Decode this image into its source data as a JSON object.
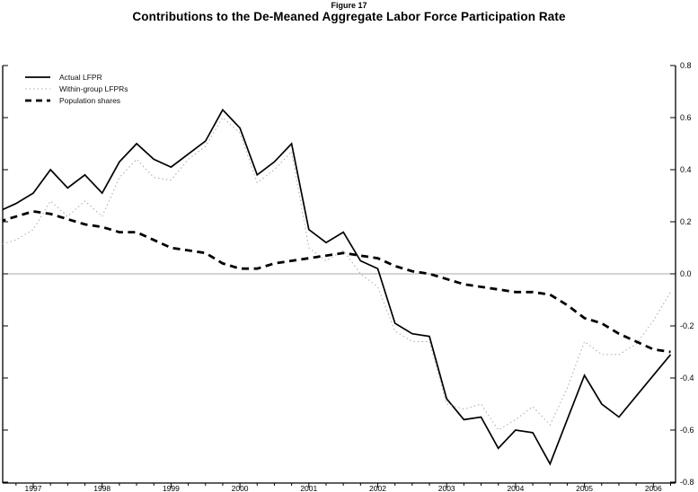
{
  "figure": {
    "label": "Figure 17",
    "title": "Contributions to the De-Meaned Aggregate Labor Force Participation Rate"
  },
  "chart_data": {
    "type": "line",
    "x": [
      "1996Q3",
      "1996Q4",
      "1997Q1",
      "1997Q2",
      "1997Q3",
      "1997Q4",
      "1998Q1",
      "1998Q2",
      "1998Q3",
      "1998Q4",
      "1999Q1",
      "1999Q2",
      "1999Q3",
      "1999Q4",
      "2000Q1",
      "2000Q2",
      "2000Q3",
      "2000Q4",
      "2001Q1",
      "2001Q2",
      "2001Q3",
      "2001Q4",
      "2002Q1",
      "2002Q2",
      "2002Q3",
      "2002Q4",
      "2003Q1",
      "2003Q2",
      "2003Q3",
      "2003Q4",
      "2004Q1",
      "2004Q2",
      "2004Q3",
      "2004Q4",
      "2005Q1",
      "2005Q2",
      "2005Q3",
      "2005Q4",
      "2006Q1",
      "2006Q2"
    ],
    "series": [
      {
        "name": "Actual LFPR",
        "style": "solid-black",
        "values": [
          0.24,
          0.27,
          0.31,
          0.4,
          0.33,
          0.38,
          0.31,
          0.43,
          0.5,
          0.44,
          0.41,
          0.46,
          0.51,
          0.63,
          0.56,
          0.38,
          0.43,
          0.5,
          0.17,
          0.12,
          0.16,
          0.05,
          0.02,
          -0.19,
          -0.23,
          -0.24,
          -0.48,
          -0.56,
          -0.55,
          -0.67,
          -0.6,
          -0.61,
          -0.73,
          -0.56,
          -0.39,
          -0.5,
          -0.55,
          -0.47,
          -0.39,
          -0.31
        ]
      },
      {
        "name": "Within-group LFPRs",
        "style": "dotted-gray",
        "values": [
          0.11,
          0.13,
          0.17,
          0.28,
          0.22,
          0.28,
          0.22,
          0.37,
          0.44,
          0.37,
          0.36,
          0.44,
          0.49,
          0.6,
          0.54,
          0.35,
          0.4,
          0.47,
          0.1,
          0.05,
          0.09,
          0.0,
          -0.05,
          -0.22,
          -0.26,
          -0.26,
          -0.5,
          -0.52,
          -0.5,
          -0.6,
          -0.56,
          -0.51,
          -0.58,
          -0.44,
          -0.26,
          -0.31,
          -0.31,
          -0.27,
          -0.18,
          -0.07
        ]
      },
      {
        "name": "Population shares",
        "style": "dashed-black-bold",
        "values": [
          0.2,
          0.22,
          0.24,
          0.23,
          0.21,
          0.19,
          0.18,
          0.16,
          0.16,
          0.13,
          0.1,
          0.09,
          0.08,
          0.04,
          0.02,
          0.02,
          0.04,
          0.05,
          0.06,
          0.07,
          0.08,
          0.07,
          0.06,
          0.03,
          0.01,
          0.0,
          -0.02,
          -0.04,
          -0.05,
          -0.06,
          -0.07,
          -0.07,
          -0.08,
          -0.12,
          -0.17,
          -0.19,
          -0.23,
          -0.26,
          -0.29,
          -0.3
        ]
      }
    ],
    "ylim": [
      -0.8,
      0.8
    ],
    "yticks": [
      0.8,
      0.6,
      0.4,
      0.2,
      0.0,
      -0.2,
      -0.4,
      -0.6,
      -0.8
    ],
    "ytick_labels": [
      "0.8",
      "0.6",
      "0.4",
      "0.2",
      "0.0",
      "-0.2",
      "-0.4",
      "-0.6",
      "-0.8"
    ],
    "xtick_labels": [
      "1997",
      "1998",
      "1999",
      "2000",
      "2001",
      "2002",
      "2003",
      "2004",
      "2005",
      "2006"
    ],
    "legend_position": "top-left",
    "grid": "zero-line-only",
    "ylabel_side": "right",
    "colors": {
      "actual": "#000000",
      "within": "#a8a8a8",
      "population": "#000000",
      "zero_line": "#aaaaaa",
      "axis": "#000000"
    }
  }
}
